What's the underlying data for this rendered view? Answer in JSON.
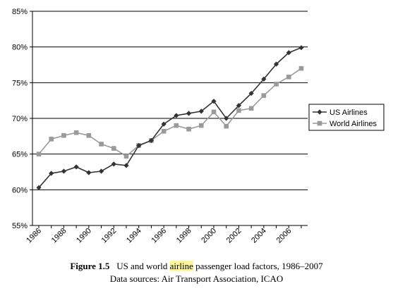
{
  "chart_data": {
    "type": "line",
    "x": [
      1986,
      1987,
      1988,
      1989,
      1990,
      1991,
      1992,
      1993,
      1994,
      1995,
      1996,
      1997,
      1998,
      1999,
      2000,
      2001,
      2002,
      2003,
      2004,
      2005,
      2006,
      2007
    ],
    "xticks": [
      "1986",
      "1988",
      "1990",
      "1992",
      "1994",
      "1996",
      "1998",
      "2000",
      "2002",
      "2004",
      "2006"
    ],
    "yticks": [
      "55%",
      "60%",
      "65%",
      "70%",
      "75%",
      "80%",
      "85%"
    ],
    "ylim": [
      55,
      85
    ],
    "xlim": [
      1986,
      2007
    ],
    "grid": "horizontal",
    "legend_position": "right",
    "series": [
      {
        "name": "US Airlines",
        "marker": "diamond",
        "color": "#333333",
        "values": [
          60.3,
          62.3,
          62.6,
          63.2,
          62.4,
          62.6,
          63.6,
          63.4,
          66.2,
          66.9,
          69.2,
          70.4,
          70.7,
          71.0,
          72.4,
          70.0,
          71.8,
          73.5,
          75.5,
          77.6,
          79.2,
          79.9
        ]
      },
      {
        "name": "World Airlines",
        "marker": "square",
        "color": "#9a9a9a",
        "values": [
          65.0,
          67.1,
          67.6,
          68.0,
          67.6,
          66.4,
          65.8,
          64.7,
          66.2,
          66.9,
          68.2,
          69.0,
          68.5,
          69.0,
          70.9,
          68.9,
          71.1,
          71.4,
          73.2,
          74.8,
          75.8,
          77.0
        ]
      }
    ]
  },
  "caption": {
    "figure_number": "Figure 1.5",
    "line1_pre": "US and world ",
    "line1_highlight": "airline",
    "line1_post": " passenger load factors, 1986–2007",
    "line2": "Data sources: Air Transport Association, ICAO"
  }
}
